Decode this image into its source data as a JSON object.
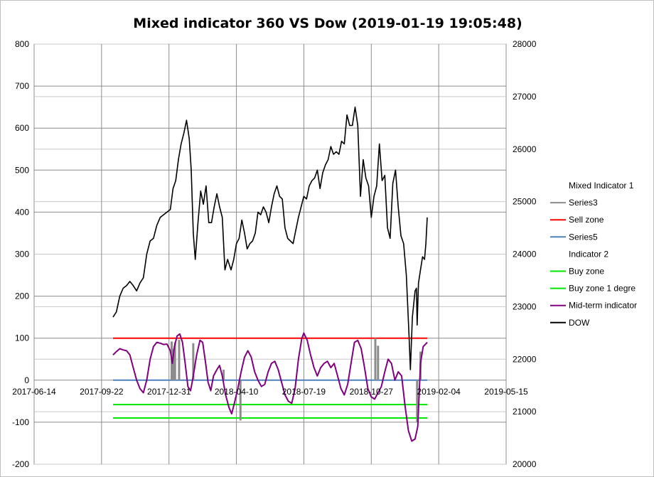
{
  "chart_data": {
    "type": "line",
    "title": "Mixed indicator 360 VS Dow (2019-01-19  19:05:48)",
    "x_axis": {
      "type": "date",
      "ticks": [
        "2017-06-14",
        "2017-09-22",
        "2017-12-31",
        "2018-04-10",
        "2018-07-19",
        "2018-10-27",
        "2019-02-04",
        "2019-05-15"
      ],
      "range": [
        "2017-06-14",
        "2019-05-15"
      ]
    },
    "y_left": {
      "range": [
        -200,
        800
      ],
      "ticks": [
        "800",
        "700",
        "600",
        "500",
        "400",
        "300",
        "200",
        "100",
        "0",
        "-100",
        "-200"
      ]
    },
    "y_right": {
      "range": [
        20000,
        28000
      ],
      "ticks": [
        "28000",
        "27000",
        "26000",
        "25000",
        "24000",
        "23000",
        "22000",
        "21000",
        "20000"
      ]
    },
    "grid": {
      "horizontal": true,
      "vertical": true
    },
    "legend": {
      "position": "right",
      "entries": [
        {
          "label": "Mixed Indicator 1",
          "color": ""
        },
        {
          "label": "Series3",
          "color": "#8c8c8c"
        },
        {
          "label": "Sell zone",
          "color": "#ff0000"
        },
        {
          "label": "Series5",
          "color": "#4f81bd"
        },
        {
          "label": "Indicator  2",
          "color": ""
        },
        {
          "label": "Buy zone",
          "color": "#00e600"
        },
        {
          "label": "Buy zone 1 degre",
          "color": "#00e600"
        },
        {
          "label": "Mid-term indicator",
          "color": "#800080"
        },
        {
          "label": "DOW",
          "color": "#000000"
        }
      ]
    },
    "series": [
      {
        "name": "Sell zone",
        "axis": "left",
        "color": "#ff0000",
        "points": [
          [
            "2017-10-09",
            100
          ],
          [
            "2019-01-18",
            100
          ]
        ]
      },
      {
        "name": "Series5",
        "axis": "left",
        "color": "#4f81bd",
        "points": [
          [
            "2017-10-09",
            0
          ],
          [
            "2019-01-18",
            0
          ]
        ]
      },
      {
        "name": "Buy zone",
        "axis": "left",
        "color": "#00e600",
        "points": [
          [
            "2017-10-09",
            -58
          ],
          [
            "2019-01-18",
            -58
          ]
        ]
      },
      {
        "name": "Buy zone 1 degre",
        "axis": "left",
        "color": "#00e600",
        "points": [
          [
            "2017-10-09",
            -90
          ],
          [
            "2019-01-18",
            -90
          ]
        ]
      },
      {
        "name": "Series3",
        "axis": "left",
        "color": "#8c8c8c",
        "style": "bars",
        "points": [
          [
            "2018-01-04",
            92
          ],
          [
            "2018-01-07",
            75
          ],
          [
            "2018-01-09",
            90
          ],
          [
            "2018-01-15",
            96
          ],
          [
            "2018-02-05",
            88
          ],
          [
            "2018-03-22",
            25
          ],
          [
            "2018-04-16",
            -96
          ],
          [
            "2018-11-02",
            100
          ],
          [
            "2018-11-06",
            82
          ],
          [
            "2019-01-03",
            -100
          ],
          [
            "2019-01-08",
            68
          ]
        ]
      },
      {
        "name": "Mid-term indicator",
        "axis": "left",
        "color": "#800080",
        "points": [
          [
            "2017-10-09",
            60
          ],
          [
            "2017-10-14",
            68
          ],
          [
            "2017-10-19",
            75
          ],
          [
            "2017-10-24",
            72
          ],
          [
            "2017-10-29",
            70
          ],
          [
            "2017-11-03",
            60
          ],
          [
            "2017-11-08",
            30
          ],
          [
            "2017-11-13",
            0
          ],
          [
            "2017-11-18",
            -20
          ],
          [
            "2017-11-23",
            -30
          ],
          [
            "2017-11-28",
            0
          ],
          [
            "2017-12-03",
            50
          ],
          [
            "2017-12-08",
            80
          ],
          [
            "2017-12-13",
            90
          ],
          [
            "2017-12-18",
            88
          ],
          [
            "2017-12-23",
            85
          ],
          [
            "2017-12-28",
            86
          ],
          [
            "2018-01-02",
            70
          ],
          [
            "2018-01-05",
            40
          ],
          [
            "2018-01-08",
            80
          ],
          [
            "2018-01-12",
            105
          ],
          [
            "2018-01-16",
            110
          ],
          [
            "2018-01-20",
            90
          ],
          [
            "2018-01-24",
            40
          ],
          [
            "2018-01-28",
            -15
          ],
          [
            "2018-02-01",
            -25
          ],
          [
            "2018-02-05",
            10
          ],
          [
            "2018-02-10",
            60
          ],
          [
            "2018-02-15",
            95
          ],
          [
            "2018-02-19",
            90
          ],
          [
            "2018-02-23",
            45
          ],
          [
            "2018-02-27",
            -5
          ],
          [
            "2018-03-03",
            -25
          ],
          [
            "2018-03-07",
            10
          ],
          [
            "2018-03-12",
            25
          ],
          [
            "2018-03-16",
            35
          ],
          [
            "2018-03-20",
            10
          ],
          [
            "2018-03-25",
            -35
          ],
          [
            "2018-03-30",
            -65
          ],
          [
            "2018-04-03",
            -80
          ],
          [
            "2018-04-07",
            -55
          ],
          [
            "2018-04-12",
            -20
          ],
          [
            "2018-04-17",
            20
          ],
          [
            "2018-04-22",
            55
          ],
          [
            "2018-04-27",
            70
          ],
          [
            "2018-05-02",
            55
          ],
          [
            "2018-05-07",
            20
          ],
          [
            "2018-05-12",
            0
          ],
          [
            "2018-05-17",
            -15
          ],
          [
            "2018-05-22",
            -10
          ],
          [
            "2018-05-27",
            20
          ],
          [
            "2018-06-01",
            40
          ],
          [
            "2018-06-06",
            45
          ],
          [
            "2018-06-11",
            25
          ],
          [
            "2018-06-16",
            -5
          ],
          [
            "2018-06-21",
            -35
          ],
          [
            "2018-06-26",
            -50
          ],
          [
            "2018-07-01",
            -55
          ],
          [
            "2018-07-06",
            -20
          ],
          [
            "2018-07-11",
            50
          ],
          [
            "2018-07-16",
            100
          ],
          [
            "2018-07-19",
            112
          ],
          [
            "2018-07-24",
            95
          ],
          [
            "2018-07-29",
            60
          ],
          [
            "2018-08-03",
            30
          ],
          [
            "2018-08-08",
            10
          ],
          [
            "2018-08-13",
            30
          ],
          [
            "2018-08-18",
            40
          ],
          [
            "2018-08-23",
            45
          ],
          [
            "2018-08-28",
            30
          ],
          [
            "2018-09-02",
            40
          ],
          [
            "2018-09-07",
            10
          ],
          [
            "2018-09-12",
            -20
          ],
          [
            "2018-09-17",
            -35
          ],
          [
            "2018-09-22",
            -10
          ],
          [
            "2018-09-27",
            40
          ],
          [
            "2018-10-02",
            90
          ],
          [
            "2018-10-07",
            95
          ],
          [
            "2018-10-12",
            75
          ],
          [
            "2018-10-17",
            30
          ],
          [
            "2018-10-22",
            -20
          ],
          [
            "2018-10-27",
            -40
          ],
          [
            "2018-11-01",
            -45
          ],
          [
            "2018-11-06",
            -30
          ],
          [
            "2018-11-11",
            -15
          ],
          [
            "2018-11-16",
            20
          ],
          [
            "2018-11-21",
            50
          ],
          [
            "2018-11-26",
            40
          ],
          [
            "2018-12-01",
            0
          ],
          [
            "2018-12-06",
            20
          ],
          [
            "2018-12-11",
            10
          ],
          [
            "2018-12-16",
            -60
          ],
          [
            "2018-12-21",
            -120
          ],
          [
            "2018-12-26",
            -145
          ],
          [
            "2018-12-31",
            -140
          ],
          [
            "2019-01-04",
            -110
          ],
          [
            "2019-01-08",
            40
          ],
          [
            "2019-01-12",
            80
          ],
          [
            "2019-01-15",
            85
          ],
          [
            "2019-01-18",
            90
          ]
        ]
      },
      {
        "name": "DOW",
        "axis": "right",
        "color": "#000000",
        "points": [
          [
            "2017-10-09",
            22800
          ],
          [
            "2017-10-14",
            22900
          ],
          [
            "2017-10-19",
            23200
          ],
          [
            "2017-10-24",
            23350
          ],
          [
            "2017-10-29",
            23400
          ],
          [
            "2017-11-03",
            23480
          ],
          [
            "2017-11-08",
            23400
          ],
          [
            "2017-11-13",
            23300
          ],
          [
            "2017-11-18",
            23450
          ],
          [
            "2017-11-23",
            23550
          ],
          [
            "2017-11-28",
            24000
          ],
          [
            "2017-12-03",
            24250
          ],
          [
            "2017-12-08",
            24300
          ],
          [
            "2017-12-13",
            24550
          ],
          [
            "2017-12-18",
            24700
          ],
          [
            "2017-12-23",
            24750
          ],
          [
            "2017-12-28",
            24800
          ],
          [
            "2018-01-02",
            24850
          ],
          [
            "2018-01-06",
            25250
          ],
          [
            "2018-01-10",
            25400
          ],
          [
            "2018-01-14",
            25800
          ],
          [
            "2018-01-18",
            26100
          ],
          [
            "2018-01-22",
            26300
          ],
          [
            "2018-01-26",
            26550
          ],
          [
            "2018-01-30",
            26200
          ],
          [
            "2018-02-02",
            25600
          ],
          [
            "2018-02-05",
            24400
          ],
          [
            "2018-02-08",
            23900
          ],
          [
            "2018-02-12",
            24600
          ],
          [
            "2018-02-16",
            25200
          ],
          [
            "2018-02-20",
            24950
          ],
          [
            "2018-02-24",
            25300
          ],
          [
            "2018-02-28",
            24600
          ],
          [
            "2018-03-04",
            24600
          ],
          [
            "2018-03-08",
            24900
          ],
          [
            "2018-03-12",
            25150
          ],
          [
            "2018-03-16",
            24900
          ],
          [
            "2018-03-20",
            24700
          ],
          [
            "2018-03-24",
            23700
          ],
          [
            "2018-03-28",
            23900
          ],
          [
            "2018-04-02",
            23700
          ],
          [
            "2018-04-06",
            23900
          ],
          [
            "2018-04-10",
            24200
          ],
          [
            "2018-04-14",
            24300
          ],
          [
            "2018-04-18",
            24650
          ],
          [
            "2018-04-22",
            24400
          ],
          [
            "2018-04-26",
            24100
          ],
          [
            "2018-04-30",
            24200
          ],
          [
            "2018-05-04",
            24250
          ],
          [
            "2018-05-08",
            24400
          ],
          [
            "2018-05-12",
            24800
          ],
          [
            "2018-05-16",
            24750
          ],
          [
            "2018-05-20",
            24900
          ],
          [
            "2018-05-24",
            24800
          ],
          [
            "2018-05-28",
            24600
          ],
          [
            "2018-06-01",
            24900
          ],
          [
            "2018-06-05",
            25150
          ],
          [
            "2018-06-09",
            25300
          ],
          [
            "2018-06-13",
            25100
          ],
          [
            "2018-06-17",
            25050
          ],
          [
            "2018-06-21",
            24500
          ],
          [
            "2018-06-25",
            24300
          ],
          [
            "2018-06-29",
            24250
          ],
          [
            "2018-07-03",
            24200
          ],
          [
            "2018-07-07",
            24450
          ],
          [
            "2018-07-11",
            24700
          ],
          [
            "2018-07-15",
            24900
          ],
          [
            "2018-07-19",
            25100
          ],
          [
            "2018-07-23",
            25050
          ],
          [
            "2018-07-27",
            25300
          ],
          [
            "2018-07-31",
            25400
          ],
          [
            "2018-08-04",
            25450
          ],
          [
            "2018-08-08",
            25600
          ],
          [
            "2018-08-12",
            25250
          ],
          [
            "2018-08-16",
            25550
          ],
          [
            "2018-08-20",
            25700
          ],
          [
            "2018-08-24",
            25800
          ],
          [
            "2018-08-28",
            26050
          ],
          [
            "2018-09-01",
            25900
          ],
          [
            "2018-09-05",
            25950
          ],
          [
            "2018-09-09",
            25900
          ],
          [
            "2018-09-13",
            26150
          ],
          [
            "2018-09-17",
            26100
          ],
          [
            "2018-09-21",
            26650
          ],
          [
            "2018-09-25",
            26450
          ],
          [
            "2018-09-29",
            26450
          ],
          [
            "2018-10-03",
            26800
          ],
          [
            "2018-10-07",
            26450
          ],
          [
            "2018-10-11",
            25100
          ],
          [
            "2018-10-15",
            25800
          ],
          [
            "2018-10-19",
            25450
          ],
          [
            "2018-10-23",
            25300
          ],
          [
            "2018-10-27",
            24700
          ],
          [
            "2018-10-31",
            25100
          ],
          [
            "2018-11-04",
            25300
          ],
          [
            "2018-11-08",
            26100
          ],
          [
            "2018-11-12",
            25400
          ],
          [
            "2018-11-16",
            25500
          ],
          [
            "2018-11-20",
            24500
          ],
          [
            "2018-11-24",
            24300
          ],
          [
            "2018-11-28",
            25350
          ],
          [
            "2018-12-02",
            25600
          ],
          [
            "2018-12-06",
            24900
          ],
          [
            "2018-12-10",
            24350
          ],
          [
            "2018-12-14",
            24200
          ],
          [
            "2018-12-18",
            23600
          ],
          [
            "2018-12-22",
            22450
          ],
          [
            "2018-12-24",
            21800
          ],
          [
            "2018-12-27",
            22800
          ],
          [
            "2018-12-31",
            23300
          ],
          [
            "2019-01-02",
            23350
          ],
          [
            "2019-01-03",
            22650
          ],
          [
            "2019-01-05",
            23450
          ],
          [
            "2019-01-08",
            23700
          ],
          [
            "2019-01-11",
            23950
          ],
          [
            "2019-01-14",
            23900
          ],
          [
            "2019-01-16",
            24200
          ],
          [
            "2019-01-18",
            24700
          ]
        ]
      }
    ]
  }
}
